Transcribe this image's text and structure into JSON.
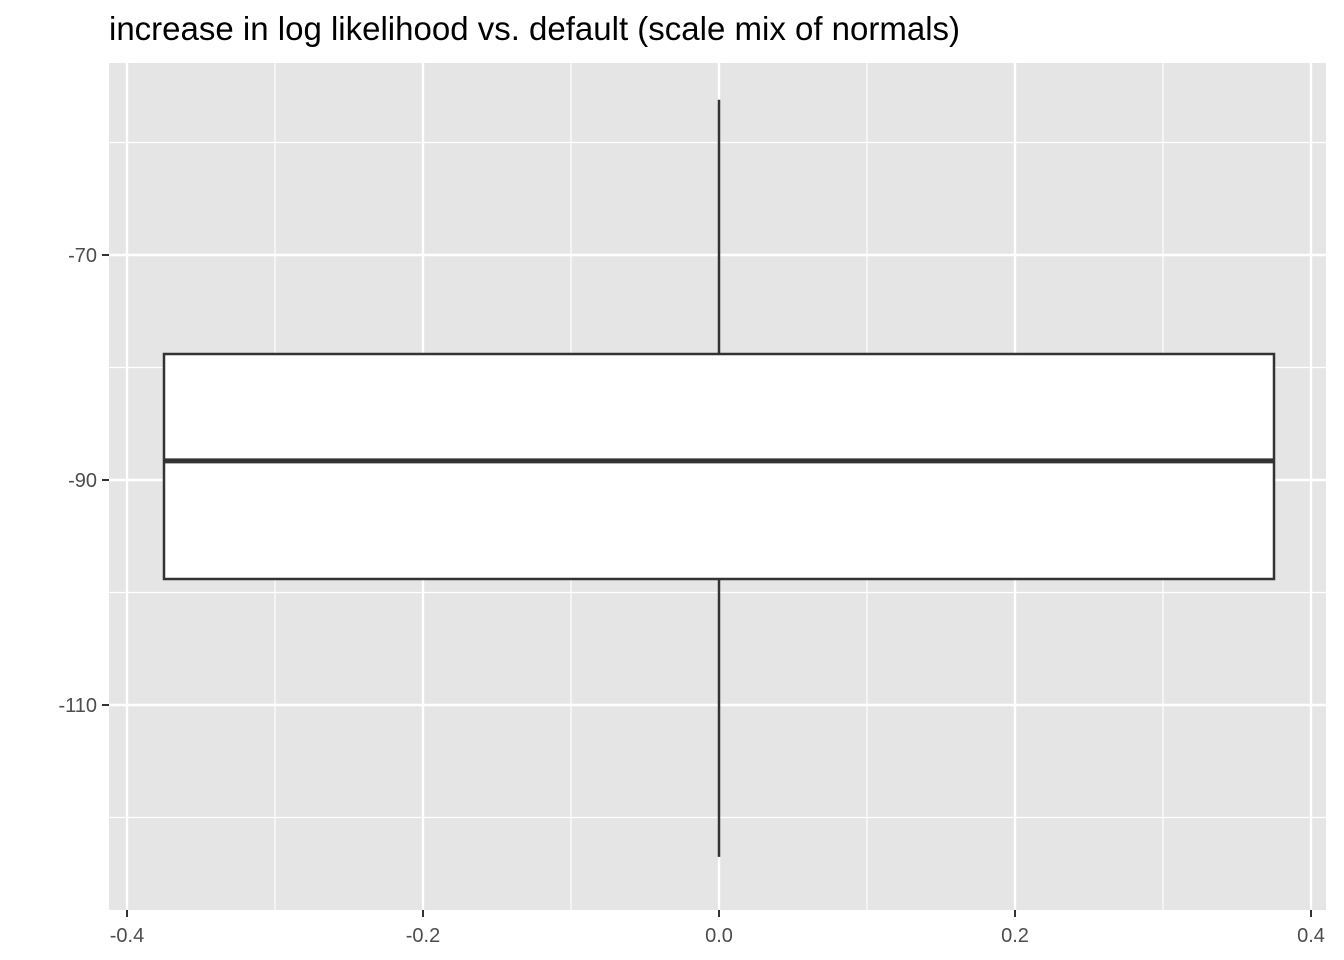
{
  "chart_data": {
    "type": "boxplot",
    "title": "increase in log likelihood vs. default (scale mix of normals)",
    "xlabel": "",
    "ylabel": "",
    "xlim": [
      -0.4,
      0.4
    ],
    "ylim": [
      -120,
      -50
    ],
    "x_ticks": [
      -0.4,
      -0.2,
      0.0,
      0.2,
      0.4
    ],
    "x_tick_labels": [
      "-0.4",
      "-0.2",
      "0.0",
      "0.2",
      "0.4"
    ],
    "y_ticks": [
      -70,
      -90,
      -110
    ],
    "y_tick_labels": [
      "-70",
      "-90",
      "-110"
    ],
    "grid": true,
    "background": "#e5e5e5",
    "grid_color": "#ffffff",
    "box_fill": "#ffffff",
    "box_stroke": "#333333",
    "boxes": [
      {
        "x": 0.0,
        "x_min": -0.375,
        "x_max": 0.375,
        "whisker_low": -123.5,
        "q1": -98.8,
        "median": -88.3,
        "q3": -78.8,
        "whisker_high": -56.2
      }
    ]
  }
}
